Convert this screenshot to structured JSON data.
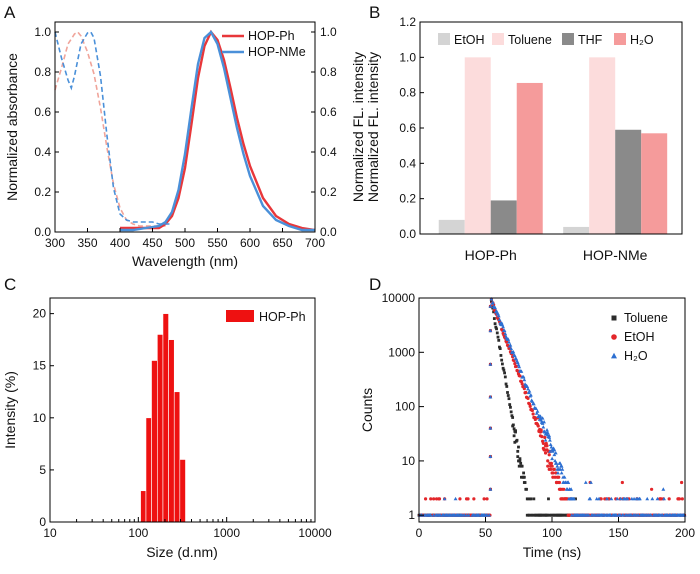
{
  "chart_data": [
    {
      "panel": "A",
      "type": "line",
      "xlabel": "Wavelength (nm)",
      "ylabel_left": "Normalized  absorbance",
      "ylabel_right": "Normalized FL. intensity",
      "xlim": [
        300,
        700
      ],
      "ylim": [
        0,
        1.05
      ],
      "xticks": [
        "300",
        "350",
        "400",
        "450",
        "500",
        "550",
        "600",
        "650",
        "700"
      ],
      "yticks_left": [
        "0.0",
        "0.2",
        "0.4",
        "0.6",
        "0.8",
        "1.0"
      ],
      "yticks_right": [
        "0.0",
        "0.2",
        "0.4",
        "0.6",
        "0.8",
        "1.0"
      ],
      "legend_position": "top-right",
      "series": [
        {
          "name": "HOP-Ph",
          "color": "#e8373a",
          "kind": "absorbance",
          "x": [
            300,
            310,
            320,
            330,
            335,
            340,
            350,
            360,
            370,
            380,
            390,
            400,
            410,
            420,
            430,
            440,
            450,
            460,
            470
          ],
          "y": [
            0.71,
            0.82,
            0.94,
            0.99,
            1.0,
            0.98,
            0.9,
            0.79,
            0.62,
            0.42,
            0.24,
            0.12,
            0.06,
            0.04,
            0.03,
            0.03,
            0.03,
            0.03,
            0.03
          ]
        },
        {
          "name": "HOP-Ph",
          "color": "#e8373a",
          "kind": "emission",
          "x": [
            400,
            420,
            440,
            460,
            470,
            480,
            490,
            500,
            510,
            520,
            530,
            540,
            550,
            560,
            570,
            580,
            590,
            600,
            620,
            640,
            660,
            680,
            700
          ],
          "y": [
            0.02,
            0.02,
            0.02,
            0.02,
            0.04,
            0.08,
            0.17,
            0.32,
            0.54,
            0.77,
            0.93,
            1.0,
            0.96,
            0.86,
            0.72,
            0.57,
            0.44,
            0.33,
            0.17,
            0.08,
            0.04,
            0.02,
            0.01
          ]
        },
        {
          "name": "HOP-NMe",
          "color": "#4a90d9",
          "kind": "absorbance",
          "x": [
            300,
            310,
            320,
            325,
            330,
            340,
            350,
            355,
            360,
            370,
            380,
            390,
            400,
            410,
            420,
            430,
            440,
            450,
            460,
            470,
            480
          ],
          "y": [
            1.0,
            0.87,
            0.76,
            0.72,
            0.78,
            0.94,
            0.995,
            1.0,
            0.97,
            0.78,
            0.48,
            0.22,
            0.09,
            0.06,
            0.05,
            0.05,
            0.05,
            0.05,
            0.04,
            0.04,
            0.04
          ]
        },
        {
          "name": "HOP-NMe",
          "color": "#4a90d9",
          "kind": "emission",
          "x": [
            400,
            420,
            440,
            460,
            470,
            480,
            490,
            500,
            510,
            520,
            530,
            540,
            550,
            560,
            570,
            580,
            590,
            600,
            620,
            640,
            660,
            680,
            700
          ],
          "y": [
            0.01,
            0.01,
            0.02,
            0.03,
            0.05,
            0.1,
            0.21,
            0.39,
            0.62,
            0.84,
            0.97,
            1.0,
            0.94,
            0.82,
            0.67,
            0.52,
            0.39,
            0.28,
            0.13,
            0.06,
            0.03,
            0.01,
            0.01
          ]
        }
      ]
    },
    {
      "panel": "B",
      "type": "bar",
      "ylabel": "Normalized FL. intensity",
      "ylim": [
        0,
        1.2
      ],
      "yticks": [
        "0.0",
        "0.2",
        "0.4",
        "0.6",
        "0.8",
        "1.0",
        "1.2"
      ],
      "categories": [
        "HOP-Ph",
        "HOP-NMe"
      ],
      "legend_position": "top",
      "series": [
        {
          "name": "EtOH",
          "color": "#d4d4d4",
          "values": [
            0.08,
            0.04
          ]
        },
        {
          "name": "Toluene",
          "color": "#fcdcdc",
          "values": [
            1.0,
            1.0
          ]
        },
        {
          "name": "THF",
          "color": "#8a8a8a",
          "values": [
            0.19,
            0.59
          ]
        },
        {
          "name": "H₂O",
          "color": "#f59b9b",
          "values": [
            0.855,
            0.57
          ]
        }
      ]
    },
    {
      "panel": "C",
      "type": "bar",
      "xlabel": "Size (d.nm)",
      "ylabel": "Intensity (%)",
      "xscale": "log",
      "xlim": [
        10,
        10000
      ],
      "ylim": [
        0,
        21.5
      ],
      "xticks": [
        "10",
        "100",
        "1000",
        "10000"
      ],
      "yticks": [
        "0",
        "5",
        "10",
        "15",
        "20"
      ],
      "legend_position": "top-right",
      "color": "#ee1111",
      "series": [
        {
          "name": "HOP-Ph",
          "bin_edges": [
            106,
            122,
            141,
            164,
            190,
            220,
            255,
            295,
            342
          ],
          "values": [
            3.0,
            10.0,
            15.5,
            18.0,
            20.0,
            17.5,
            12.5,
            6.0
          ]
        }
      ]
    },
    {
      "panel": "D",
      "type": "scatter",
      "xlabel": "Time (ns)",
      "ylabel": "Counts",
      "yscale": "log",
      "xlim": [
        0,
        200
      ],
      "ylim": [
        0.75,
        10000
      ],
      "xticks": [
        "0",
        "50",
        "100",
        "150",
        "200"
      ],
      "yticks": [
        "1",
        "10",
        "100",
        "1000",
        "10000"
      ],
      "legend_position": "top-right",
      "series": [
        {
          "name": "Toluene",
          "color": "#2b2b2b",
          "marker": "square",
          "peak_time": 54,
          "peak_counts": 10000,
          "decay_tau": 3.2,
          "tail_end": 120
        },
        {
          "name": "EtOH",
          "color": "#e3262a",
          "marker": "circle",
          "peak_time": 54,
          "peak_counts": 10000,
          "decay_tau": 6.5,
          "tail_end": 200
        },
        {
          "name": "H₂O",
          "color": "#2d6fd1",
          "marker": "triangle",
          "peak_time": 54,
          "peak_counts": 10000,
          "decay_tau": 7.2,
          "tail_end": 200
        }
      ]
    }
  ],
  "panel_labels": [
    "A",
    "B",
    "C",
    "D"
  ]
}
